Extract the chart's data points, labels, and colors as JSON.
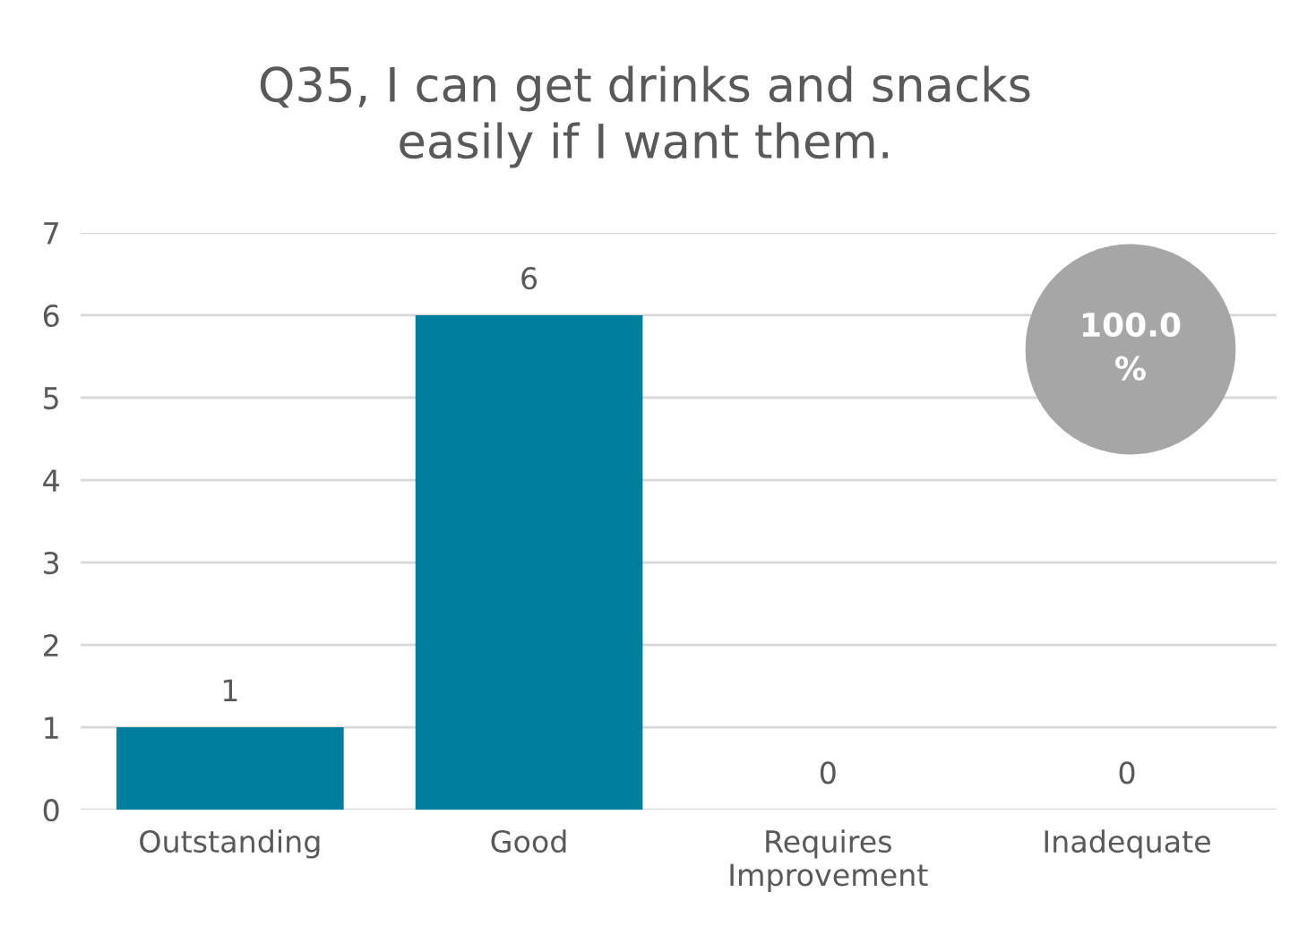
{
  "chart_data": {
    "type": "bar",
    "title": "Q35, I can get drinks and snacks easily if I want them.",
    "categories": [
      "Outstanding",
      "Good",
      "Requires Improvement",
      "Inadequate"
    ],
    "values": [
      1,
      6,
      0,
      0
    ],
    "color": "#007e9e",
    "ylim": [
      0,
      7
    ],
    "yticks": [
      0,
      1,
      2,
      3,
      4,
      5,
      6,
      7
    ],
    "grid": "y",
    "data_labels": true,
    "legend": false,
    "annotations": [
      "100.0 %"
    ]
  }
}
